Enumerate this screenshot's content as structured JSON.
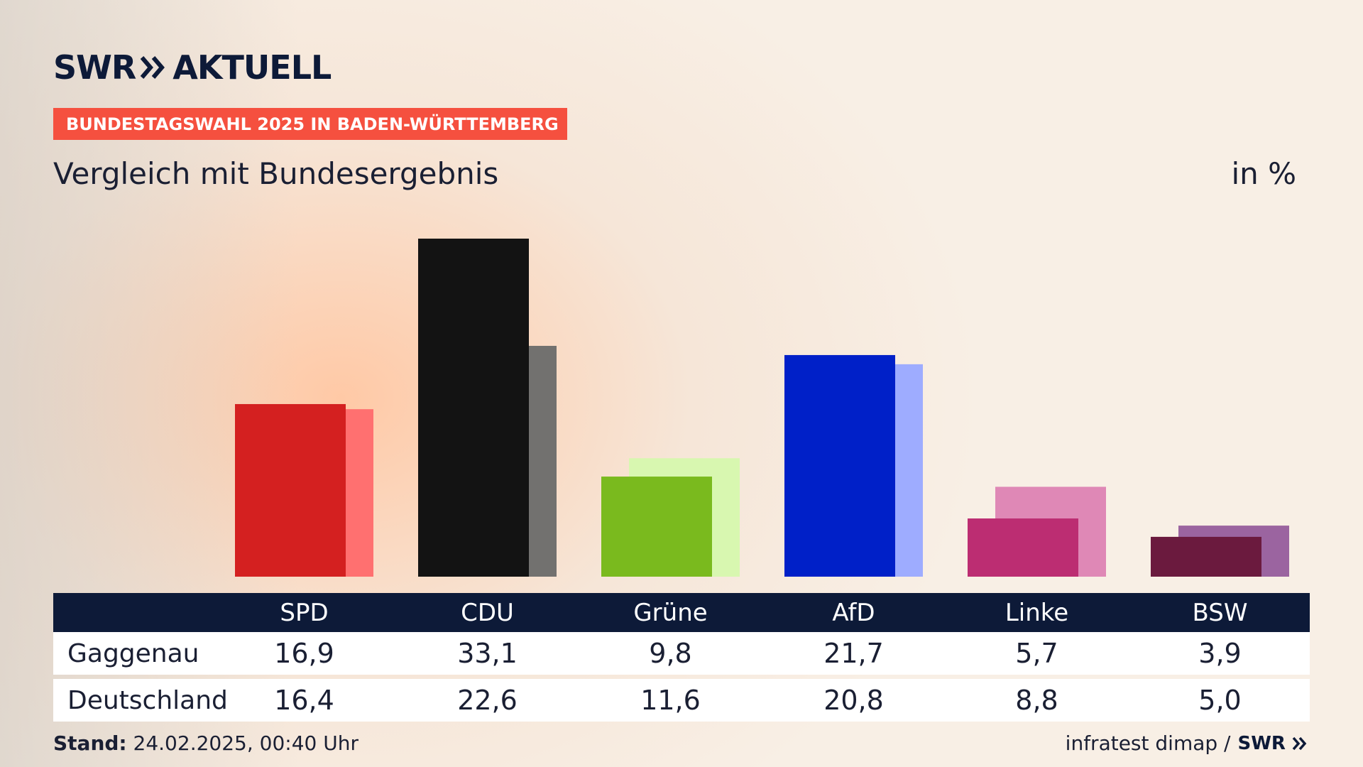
{
  "logo": {
    "part1": "SWR",
    "part2": "AKTUELL",
    "footer_logo": "SWR"
  },
  "badge": "BUNDESTAGSWAHL 2025 IN BADEN-WÜRTTEMBERG",
  "subtitle": "Vergleich mit Bundesergebnis",
  "unit": "in %",
  "table": {
    "rows": [
      {
        "label": "Gaggenau",
        "values": [
          "16,9",
          "33,1",
          "9,8",
          "21,7",
          "5,7",
          "3,9"
        ]
      },
      {
        "label": "Deutschland",
        "values": [
          "16,4",
          "22,6",
          "11,6",
          "20,8",
          "8,8",
          "5,0"
        ]
      }
    ]
  },
  "footer": {
    "stand_label": "Stand:",
    "stand_value": "24.02.2025, 00:40 Uhr",
    "source": "infratest dimap /"
  },
  "colors": {
    "badge": "#f5503f",
    "navy": "#0d1a38"
  },
  "chart_data": {
    "type": "bar",
    "categories": [
      "SPD",
      "CDU",
      "Grüne",
      "AfD",
      "Linke",
      "BSW"
    ],
    "series": [
      {
        "name": "Gaggenau",
        "values": [
          16.9,
          33.1,
          9.8,
          21.7,
          5.7,
          3.9
        ],
        "colors": [
          "#d42020",
          "#131313",
          "#7aba1e",
          "#0020c8",
          "#bc2d72",
          "#6b1a3e"
        ]
      },
      {
        "name": "Deutschland",
        "values": [
          16.4,
          22.6,
          11.6,
          20.8,
          8.8,
          5.0
        ],
        "colors": [
          "#ff7070",
          "#72716f",
          "#d8f7b0",
          "#9eacff",
          "#df88b6",
          "#9b64a0"
        ]
      }
    ],
    "ylim": [
      0,
      33.1
    ]
  }
}
